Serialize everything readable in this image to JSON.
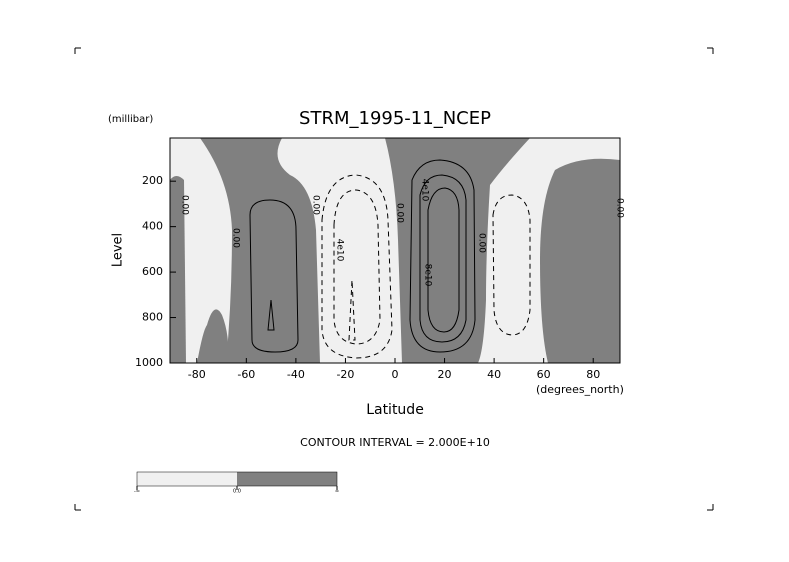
{
  "chart_data": {
    "type": "contour",
    "title": "STRM_1995-11_NCEP",
    "y_unit": "(millibar)",
    "y_label": "Level",
    "x_label": "Latitude",
    "x_unit": "(degrees_north)",
    "contour_interval": "CONTOUR INTERVAL = 2.000E+10",
    "xlim": [
      -90,
      90
    ],
    "xticks": [
      -80,
      -60,
      -40,
      -20,
      0,
      20,
      40,
      60,
      80
    ],
    "ylim": [
      1000,
      10
    ],
    "yticks": [
      200,
      400,
      600,
      800,
      1000
    ],
    "contour_labels": [
      "0.00",
      "0.00",
      "0.00",
      "4e10",
      "0.00",
      "4e10",
      "8e10",
      "0.00",
      "0.00"
    ],
    "colorbar_labels": [
      "-∞",
      "0.0",
      "∞"
    ],
    "colors": {
      "low": "#f0f0f0",
      "high": "#808080"
    }
  }
}
